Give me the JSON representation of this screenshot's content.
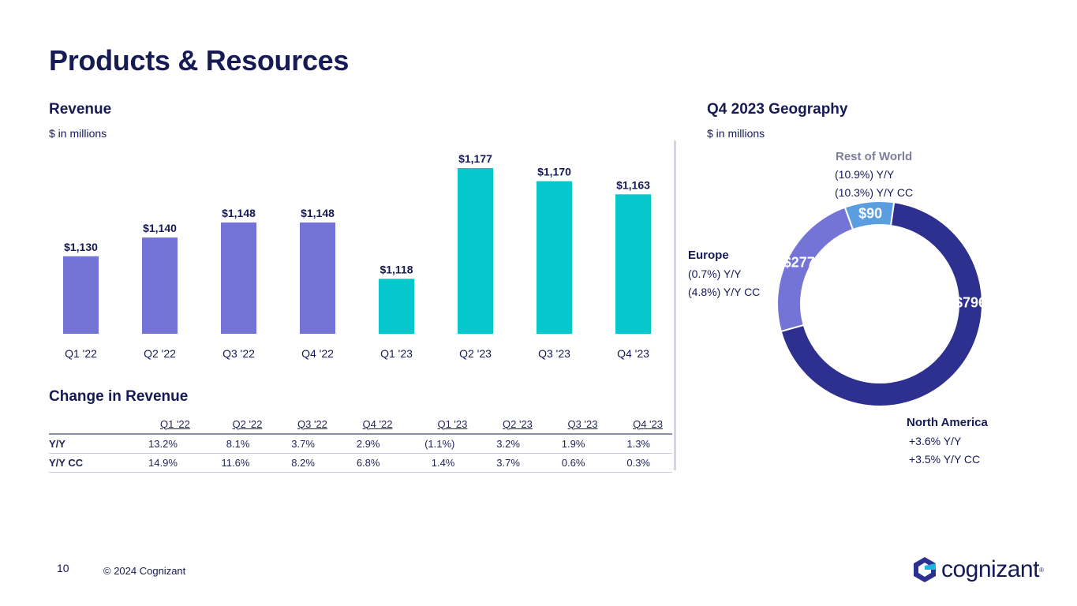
{
  "page": {
    "title": "Products & Resources",
    "page_number": "10",
    "copyright": "© 2024 Cognizant",
    "logo_text": "cognizant"
  },
  "revenue": {
    "title": "Revenue",
    "unit": "$ in millions"
  },
  "change": {
    "title": "Change in Revenue",
    "columns": [
      "Q1 '22",
      "Q2 '22",
      "Q3 '22",
      "Q4 '22",
      "Q1 '23",
      "Q2 '23",
      "Q3 '23",
      "Q4 '23"
    ],
    "rows": [
      {
        "label": "Y/Y",
        "values": [
          "13.2%",
          "8.1%",
          "3.7%",
          "2.9%",
          "(1.1%)",
          "3.2%",
          "1.9%",
          "1.3%"
        ]
      },
      {
        "label": "Y/Y CC",
        "values": [
          "14.9%",
          "11.6%",
          "8.2%",
          "6.8%",
          "1.4%",
          "3.7%",
          "0.6%",
          "0.3%"
        ]
      }
    ]
  },
  "geography": {
    "title": "Q4 2023 Geography",
    "unit": "$ in millions",
    "regions": [
      {
        "name": "North America",
        "lines": [
          "+3.6%  Y/Y",
          "+3.5%  Y/Y CC"
        ]
      },
      {
        "name": "Europe",
        "lines": [
          "(0.7%) Y/Y",
          "(4.8%) Y/Y CC"
        ]
      },
      {
        "name": "Rest of World",
        "lines": [
          "(10.9%) Y/Y",
          "(10.3%) Y/Y CC"
        ]
      }
    ]
  },
  "chart_data": [
    {
      "type": "bar",
      "categories": [
        "Q1 '22",
        "Q2 '22",
        "Q3 '22",
        "Q4 '22",
        "Q1 '23",
        "Q2 '23",
        "Q3 '23",
        "Q4 '23"
      ],
      "values": [
        1130,
        1140,
        1148,
        1148,
        1118,
        1177,
        1170,
        1163
      ],
      "labels": [
        "$1,130",
        "$1,140",
        "$1,148",
        "$1,148",
        "$1,118",
        "$1,177",
        "$1,170",
        "$1,163"
      ],
      "colors": [
        "#7474d6",
        "#7474d6",
        "#7474d6",
        "#7474d6",
        "#06c7cc",
        "#06c7cc",
        "#06c7cc",
        "#06c7cc"
      ],
      "title": "Revenue",
      "ylabel": "$ in millions",
      "grid": false
    },
    {
      "type": "pie",
      "style": "donut",
      "categories": [
        "North America",
        "Europe",
        "Rest of World"
      ],
      "values": [
        796,
        277,
        90
      ],
      "labels": [
        "$796",
        "$277",
        "$90"
      ],
      "colors": [
        "#2e308f",
        "#7474d6",
        "#5b9ee0"
      ],
      "title": "Q4 2023 Geography"
    }
  ]
}
